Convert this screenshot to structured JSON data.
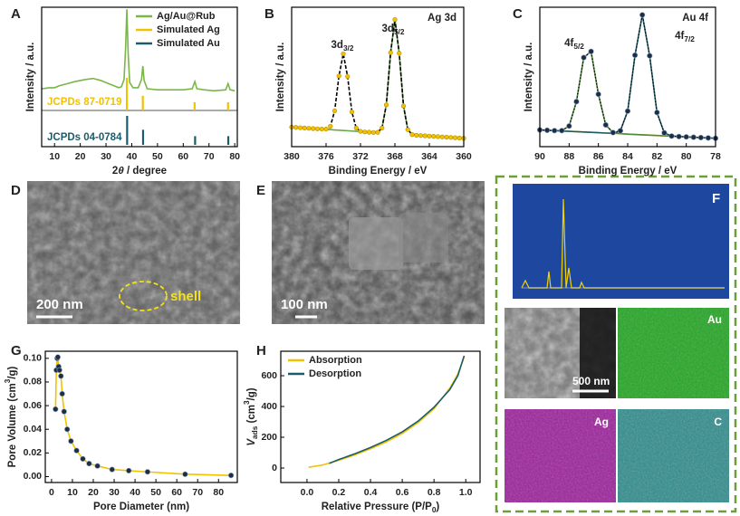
{
  "chart_data": [
    {
      "type": "line",
      "label": "A",
      "x_label": [
        "2",
        {
          "italic": "θ"
        },
        " / degree"
      ],
      "y_label": [
        "Intensity / a.u."
      ],
      "xlim": [
        5,
        81
      ],
      "xticks": [
        10,
        20,
        30,
        40,
        50,
        60,
        70,
        80
      ],
      "ylim": [
        0,
        100
      ],
      "legend": "upper right",
      "series": [
        {
          "name": "Ag/Au@Rub",
          "color": "#7ab648",
          "style": "line",
          "x": [
            5,
            8,
            10,
            12,
            15,
            18,
            20,
            22,
            25,
            28,
            30,
            33,
            35,
            36,
            37,
            37.6,
            38.1,
            38.6,
            39.2,
            40.5,
            42.5,
            43.8,
            44.3,
            44.8,
            46,
            50,
            55,
            60,
            63.5,
            64.5,
            65.3,
            68,
            72,
            76.5,
            77.4,
            78.2,
            80
          ],
          "values": [
            21,
            22,
            22,
            24,
            26,
            28,
            29,
            30,
            31,
            29,
            27,
            24,
            22,
            23,
            30,
            60,
            98,
            55,
            27,
            22,
            22,
            30,
            43,
            29,
            21,
            20,
            20,
            20,
            21,
            28,
            21,
            20,
            19,
            20,
            26,
            20,
            19
          ]
        },
        {
          "name": "Simulated Ag",
          "color": "#f2c200",
          "style": "stick",
          "x": [
            38.1,
            44.3,
            64.4,
            77.4
          ],
          "values": [
            100,
            45,
            25,
            25
          ]
        },
        {
          "name": "Simulated Au",
          "color": "#1a5c6b",
          "style": "stick",
          "x": [
            38.2,
            44.4,
            64.6,
            77.5
          ],
          "values": [
            100,
            52,
            30,
            30
          ]
        }
      ],
      "annotations": [
        {
          "text": "JCPDs 87-0719",
          "color": "#f2c200"
        },
        {
          "text": "JCPDs 04-0784",
          "color": "#1a5c6b"
        }
      ]
    },
    {
      "type": "line",
      "label": "B",
      "title": "Ag 3d",
      "x_label": [
        "Binding Energy / eV"
      ],
      "y_label": [
        "Intensity / a.u."
      ],
      "xlim": [
        380,
        360
      ],
      "xticks": [
        380,
        376,
        372,
        368,
        364,
        360
      ],
      "ylim": [
        0,
        100
      ],
      "x": [
        380,
        379.5,
        379,
        378.5,
        378,
        377.5,
        377,
        376.5,
        376,
        375.5,
        375,
        374.5,
        374,
        373.5,
        373,
        372.5,
        372,
        371.5,
        371,
        370.5,
        370,
        369.5,
        369,
        368.5,
        368,
        367.5,
        367,
        366.5,
        366,
        365.5,
        365,
        364.5,
        364,
        363.5,
        363,
        362.5,
        362,
        361.5,
        361,
        360.5,
        360
      ],
      "series": [
        {
          "color": "#6aa84f",
          "style": "line",
          "values": [
            14,
            13.8,
            13.6,
            13.4,
            13.2,
            13,
            12.8,
            12.6,
            12.4,
            12.2,
            12,
            11.8,
            11.6,
            11.4,
            11.2,
            11,
            10.8,
            10.6,
            10.4,
            10.2,
            10.3,
            13.4,
            30,
            67.4,
            91.2,
            67,
            29.2,
            12.2,
            8.7,
            8.2,
            8,
            7.8,
            7.6,
            7.4,
            7.2,
            7,
            6.8,
            6.6,
            6.4,
            6.2,
            6
          ]
        },
        {
          "color": "#000000",
          "style": "dashed",
          "values": [
            14,
            13.8,
            13.6,
            13.4,
            13.2,
            13,
            12.8,
            12.6,
            12.6,
            14.6,
            25.7,
            50.7,
            66.6,
            50.3,
            24.9,
            13.4,
            11,
            10.6,
            10.4,
            10.2,
            10.3,
            13.4,
            30,
            67.4,
            91.2,
            67,
            29.2,
            12.2,
            8.7,
            8.2,
            8,
            7.8,
            7.6,
            7.4,
            7.2,
            7,
            6.8,
            6.6,
            6.4,
            6.2,
            6
          ]
        },
        {
          "color": "#f2c200",
          "style": "dots",
          "values": [
            14,
            13.8,
            13.6,
            13.4,
            13.2,
            13,
            12.8,
            12.6,
            12.6,
            14.6,
            25.7,
            50.7,
            66.6,
            50.3,
            24.9,
            13.4,
            11,
            10.6,
            10.4,
            10.2,
            10.3,
            13.4,
            30,
            67.4,
            91.2,
            67,
            29.2,
            12.2,
            8.7,
            8.2,
            8,
            7.8,
            7.6,
            7.4,
            7.2,
            7,
            6.8,
            6.6,
            6.4,
            6.2,
            6
          ]
        }
      ],
      "annotations": [
        {
          "text": [
            "3d",
            {
              "sub": "3/2"
            }
          ]
        },
        {
          "text": [
            "3d",
            {
              "sub": "5/2"
            }
          ]
        }
      ]
    },
    {
      "type": "line",
      "label": "C",
      "title": "Au 4f",
      "x_label": [
        "Binding Energy / eV"
      ],
      "y_label": [
        "Intensity / a.u."
      ],
      "xlim": [
        90,
        78
      ],
      "xticks": [
        90,
        88,
        86,
        84,
        82,
        80,
        78
      ],
      "ylim": [
        0,
        100
      ],
      "x": [
        90,
        89.5,
        89,
        88.5,
        88,
        87.5,
        87,
        86.5,
        86,
        85.5,
        85,
        84.5,
        84,
        83.5,
        83,
        82.5,
        82,
        81.5,
        81,
        80.5,
        80,
        79.5,
        79,
        78.5,
        78
      ],
      "series": [
        {
          "color": "#f2c200",
          "style": "line",
          "values": [
            12,
            11.75,
            11.5,
            11.25,
            11,
            10.75,
            10.5,
            10.25,
            10,
            9.75,
            9.5,
            9.25,
            9,
            8.75,
            8.5,
            8.25,
            8,
            7.75,
            7.5,
            7.25,
            7,
            6.75,
            6.5,
            6.25,
            6
          ]
        },
        {
          "color": "#4f8a3a",
          "style": "line",
          "values": [
            12,
            11.75,
            11.5,
            11.5,
            14.8,
            32.3,
            63.9,
            68.3,
            37.6,
            15.6,
            10,
            9.25,
            9,
            8.75,
            8.5,
            8.25,
            8,
            7.75,
            7.5,
            7.25,
            7,
            6.75,
            6.5,
            6.25,
            6
          ]
        },
        {
          "color": "#1a5c6b",
          "style": "line",
          "values": [
            12,
            11.75,
            11.5,
            11.25,
            11,
            10.75,
            10.5,
            10.25,
            10,
            9.75,
            9.6,
            11.4,
            25.5,
            65.6,
            94.5,
            65.2,
            24.5,
            9.9,
            7.6,
            7.25,
            7,
            6.75,
            6.5,
            6.25,
            6
          ]
        },
        {
          "color": "#000000",
          "style": "dotted",
          "values": [
            12,
            11.75,
            11.5,
            11.5,
            14.8,
            32.3,
            63.9,
            68.3,
            37.6,
            15.6,
            10.1,
            11.4,
            25.5,
            65.6,
            94.5,
            65.2,
            24.5,
            9.9,
            7.6,
            7.25,
            7,
            6.75,
            6.5,
            6.25,
            6
          ]
        },
        {
          "color": "#1d2d44",
          "style": "dots",
          "values": [
            12,
            11.75,
            11.5,
            11.5,
            14.8,
            32.3,
            63.9,
            68.3,
            37.6,
            15.6,
            10.1,
            11.4,
            25.5,
            65.6,
            94.5,
            65.2,
            24.5,
            9.9,
            7.6,
            7.25,
            7,
            6.75,
            6.5,
            6.25,
            6
          ]
        }
      ],
      "annotations": [
        {
          "text": [
            "4f",
            {
              "sub": "5/2"
            }
          ]
        },
        {
          "text": [
            "4f",
            {
              "sub": "7/2"
            }
          ]
        }
      ]
    },
    {
      "type": "line",
      "label": "G",
      "x_label": [
        "Pore Diameter (nm)"
      ],
      "y_label": [
        "Pore Volume (cm",
        {
          "sup": "3"
        },
        "/g)"
      ],
      "xlim": [
        -3,
        89
      ],
      "xticks": [
        0,
        10,
        20,
        30,
        40,
        50,
        60,
        70,
        80
      ],
      "ylim": [
        -0.005,
        0.106
      ],
      "yticks": [
        {
          "value": 0,
          "label": "0.00"
        },
        {
          "value": 0.02,
          "label": "0.02"
        },
        {
          "value": 0.04,
          "label": "0.04"
        },
        {
          "value": 0.06,
          "label": "0.06"
        },
        {
          "value": 0.08,
          "label": "0.08"
        },
        {
          "value": 0.1,
          "label": "0.10"
        }
      ],
      "series": [
        {
          "color": "#f2c200",
          "marker_color": "#1d2d44",
          "style": "line+dots",
          "x": [
            1.9,
            2.3,
            2.7,
            3.0,
            3.4,
            3.8,
            4.5,
            5.1,
            6,
            7.5,
            9.3,
            12,
            15,
            18,
            22,
            29,
            37,
            46,
            64,
            86
          ],
          "values": [
            0.057,
            0.09,
            0.1,
            0.101,
            0.093,
            0.09,
            0.085,
            0.07,
            0.055,
            0.04,
            0.03,
            0.022,
            0.015,
            0.011,
            0.009,
            0.006,
            0.005,
            0.004,
            0.002,
            0.001
          ]
        }
      ]
    },
    {
      "type": "line",
      "label": "H",
      "x_label": [
        "Relative Pressure (P/P",
        {
          "sub": "0"
        },
        ")"
      ],
      "y_label": [
        {
          "italic": "V"
        },
        {
          "sub": "ads"
        },
        " (cm",
        {
          "sup": "3"
        },
        "/g)"
      ],
      "xlim": [
        -0.165,
        1.09
      ],
      "xticks": [
        {
          "value": 0,
          "label": "0.0"
        },
        {
          "value": 0.2,
          "label": "0.2"
        },
        {
          "value": 0.4,
          "label": "0.4"
        },
        {
          "value": 0.6,
          "label": "0.6"
        },
        {
          "value": 0.8,
          "label": "0.8"
        },
        {
          "value": 1,
          "label": "1.0"
        }
      ],
      "ylim": [
        -94,
        759
      ],
      "yticks": [
        0,
        200,
        400,
        600
      ],
      "legend": "upper left",
      "series": [
        {
          "name": "Absorption",
          "color": "#f2c200",
          "style": "line",
          "x": [
            0.01,
            0.1,
            0.2,
            0.3,
            0.4,
            0.5,
            0.6,
            0.7,
            0.8,
            0.9,
            0.95,
            0.99
          ],
          "values": [
            5,
            20,
            50,
            85,
            125,
            170,
            225,
            295,
            385,
            520,
            610,
            720
          ]
        },
        {
          "name": "Desorption",
          "color": "#1a5c6b",
          "style": "line",
          "x": [
            0.14,
            0.2,
            0.3,
            0.4,
            0.5,
            0.6,
            0.7,
            0.8,
            0.9,
            0.95,
            0.99
          ],
          "values": [
            30,
            55,
            92,
            133,
            180,
            235,
            305,
            395,
            510,
            600,
            730
          ]
        }
      ]
    }
  ],
  "images": [
    {
      "label": "D",
      "scale_bar": "200 nm",
      "annotation": "shell"
    },
    {
      "label": "E",
      "scale_bar": "100 nm"
    },
    {
      "label": "F",
      "maps": [
        "Au",
        "Ag",
        "C"
      ],
      "scale_bar": "500 nm"
    }
  ]
}
